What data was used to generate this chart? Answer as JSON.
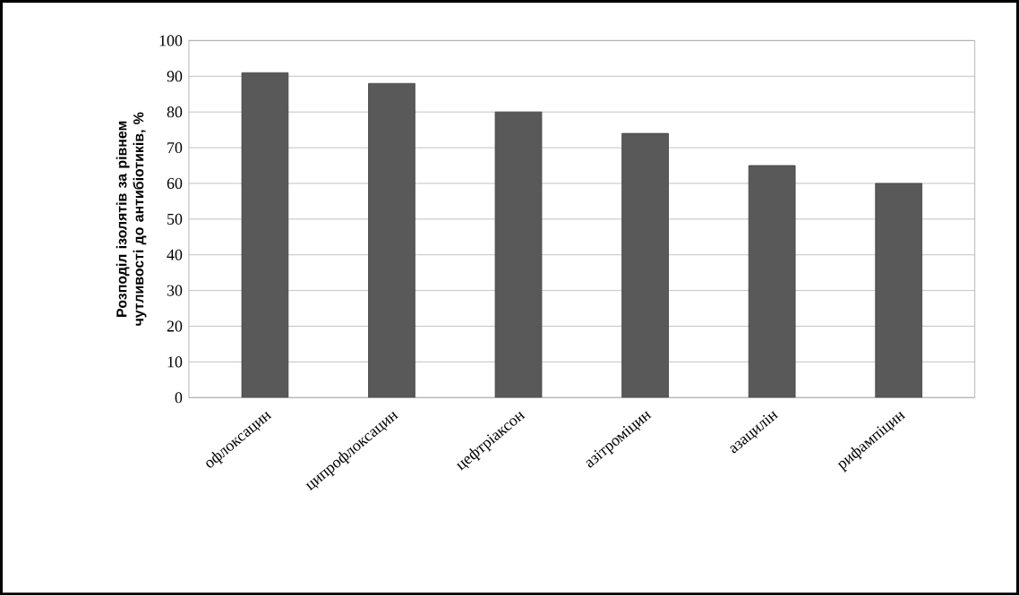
{
  "chart_data": {
    "type": "bar",
    "ylabel": "Розподіл ізолятів за рівнем чутливості до антибіотиків, %",
    "categories": [
      "офлоксацин",
      "ципрофлоксацин",
      "цефтріаксон",
      "азітроміцин",
      "азацилін",
      "рифампіцин"
    ],
    "values": [
      91,
      88,
      80,
      74,
      65,
      60
    ],
    "color": "#595959",
    "ylim": [
      0,
      100
    ],
    "yticks": [
      0,
      10,
      20,
      30,
      40,
      50,
      60,
      70,
      80,
      90,
      100
    ],
    "grid": "y"
  }
}
